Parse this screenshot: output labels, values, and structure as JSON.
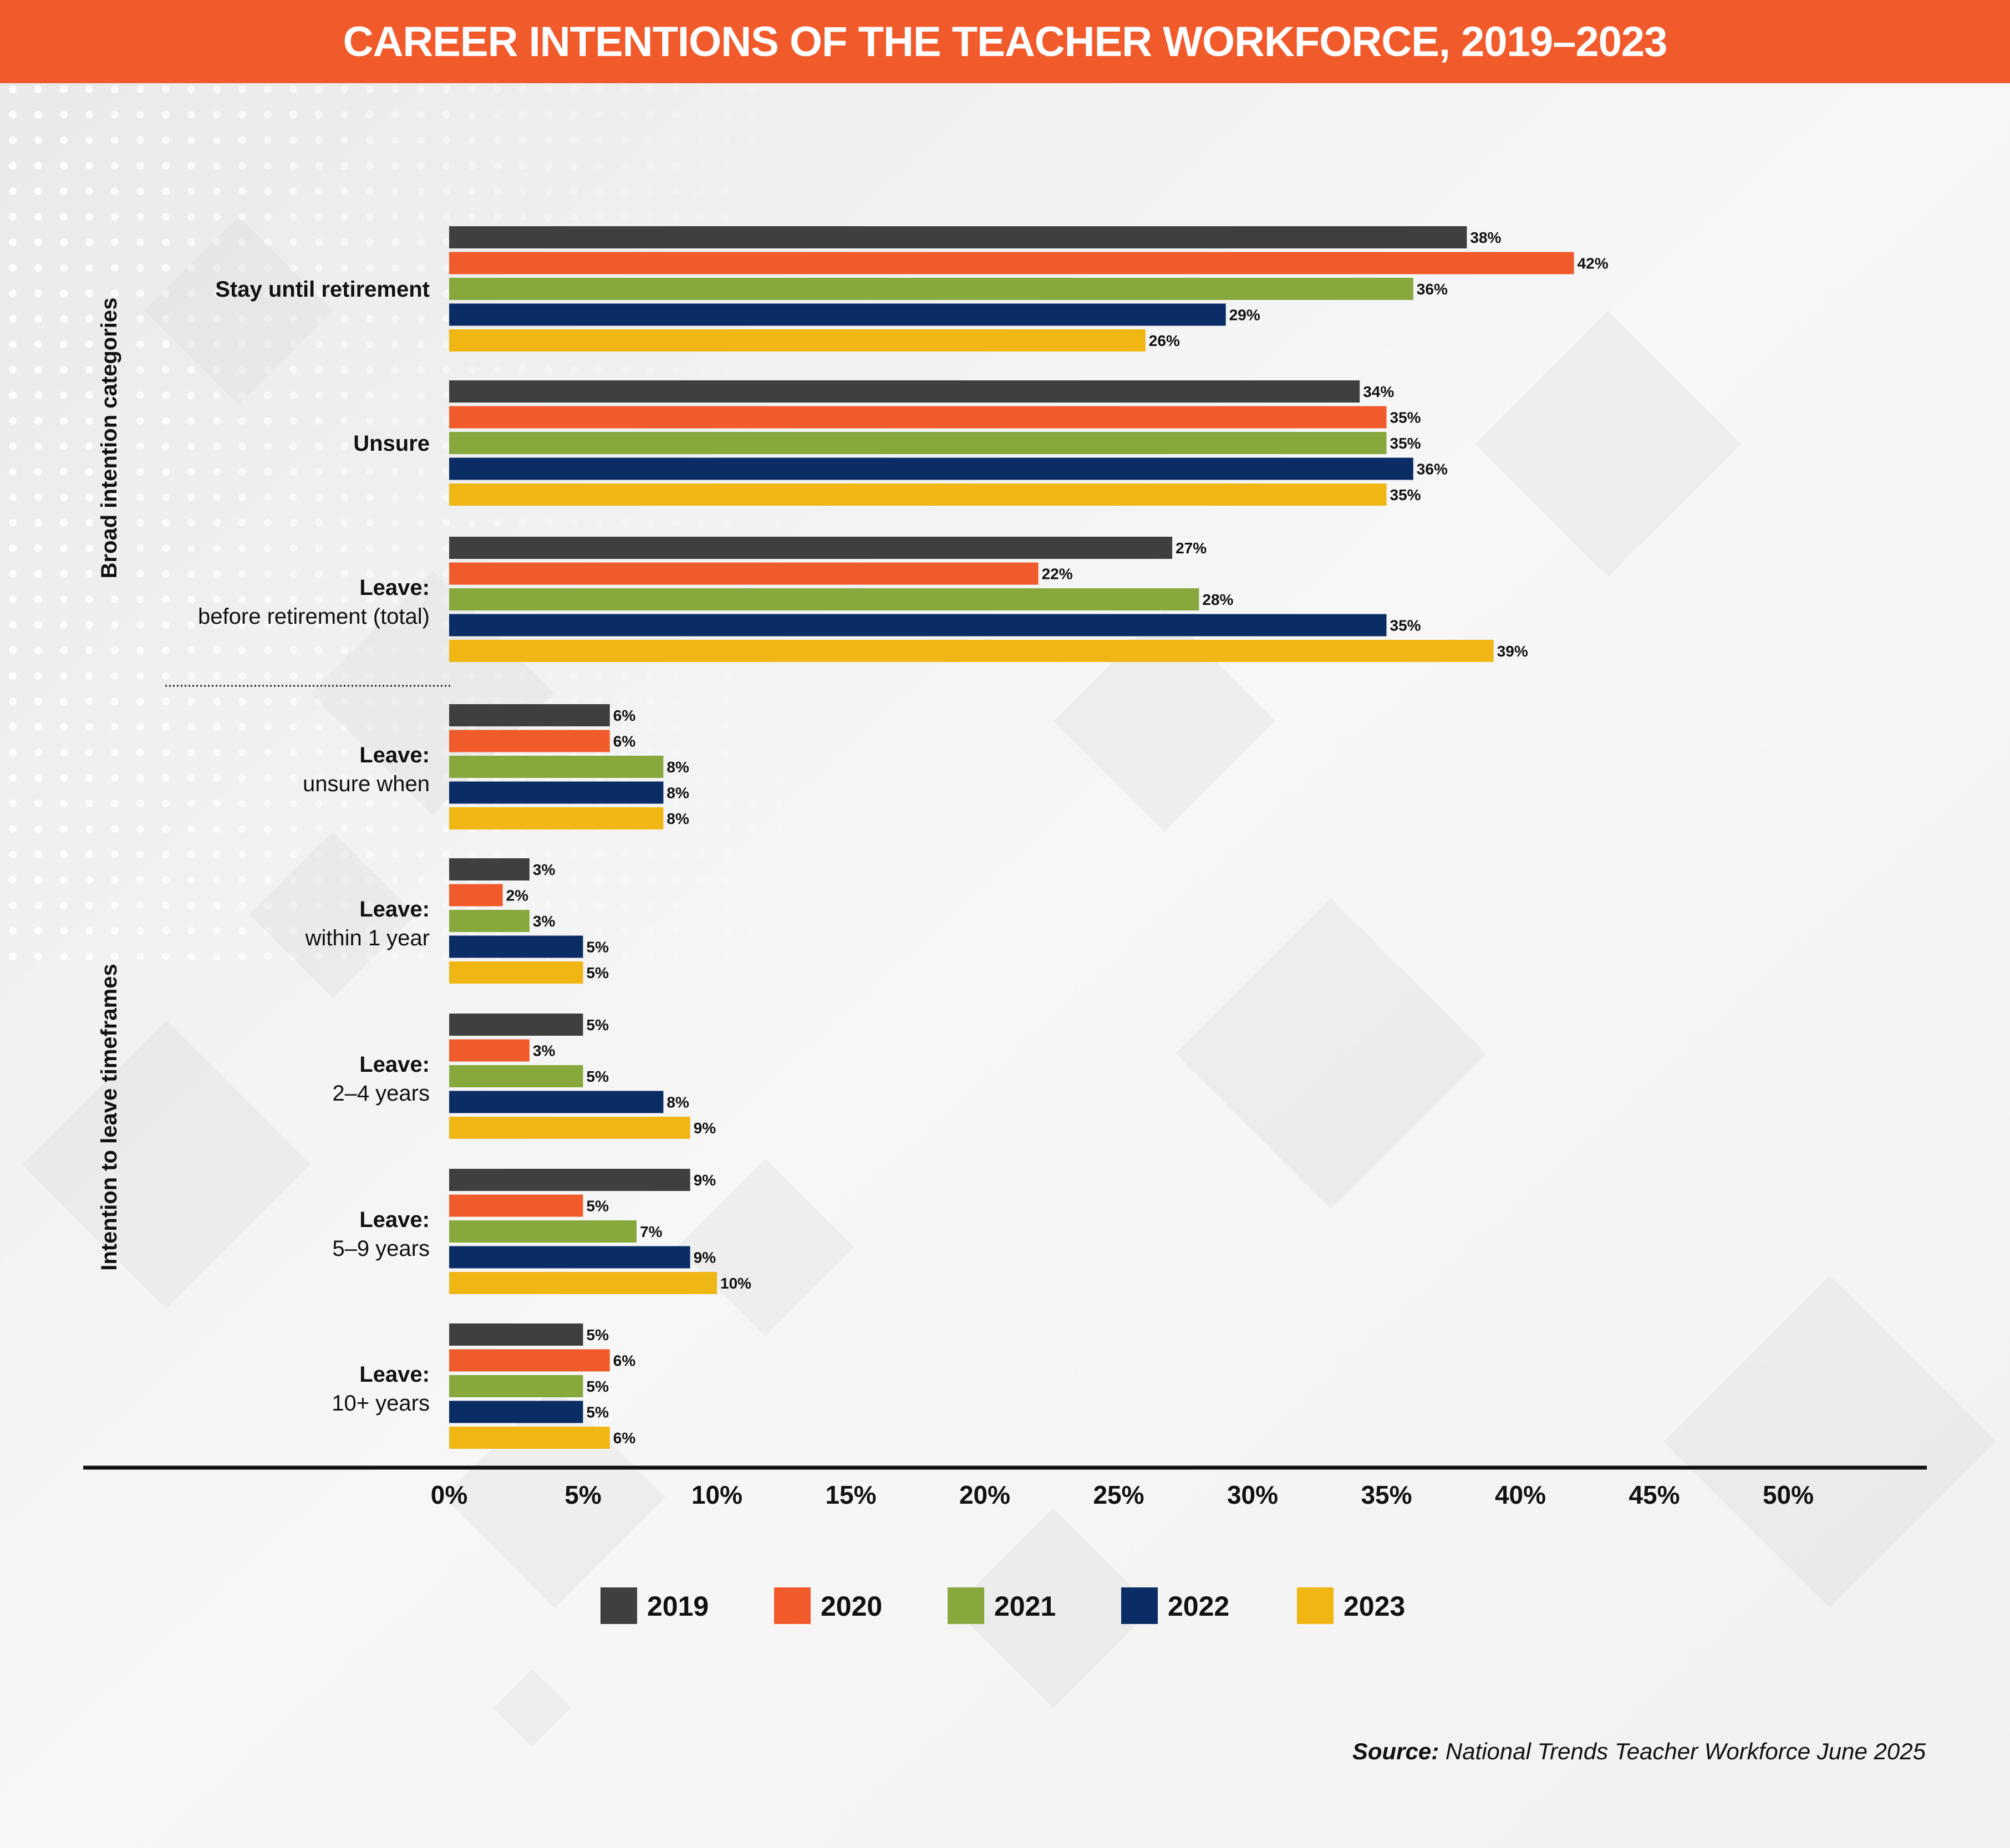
{
  "title": "CAREER INTENTIONS OF THE TEACHER WORKFORCE, 2019–2023",
  "colors": {
    "title_bar": "#F15A2B",
    "2019": "#3F3F3F",
    "2020": "#F15A2B",
    "2021": "#86A83C",
    "2022": "#0B2D66",
    "2023": "#F0B613"
  },
  "source": {
    "label": "Source:",
    "text": "National Trends Teacher Workforce June 2025"
  },
  "chart_data": {
    "type": "bar",
    "orientation": "horizontal",
    "value_suffix": "%",
    "xlim": [
      0,
      50
    ],
    "xticks": [
      "0%",
      "5%",
      "10%",
      "15%",
      "20%",
      "25%",
      "30%",
      "35%",
      "40%",
      "45%",
      "50%"
    ],
    "groups": [
      {
        "label": "Broad intention categories",
        "categories": [
          {
            "line1": "Stay until retirement",
            "line2": ""
          },
          {
            "line1": "Unsure",
            "line2": ""
          },
          {
            "line1": "Leave:",
            "line2": "before retirement (total)"
          }
        ]
      },
      {
        "label": "Intention to leave timeframes",
        "categories": [
          {
            "line1": "Leave:",
            "line2": "unsure when"
          },
          {
            "line1": "Leave:",
            "line2": "within 1 year"
          },
          {
            "line1": "Leave:",
            "line2": "2–4 years"
          },
          {
            "line1": "Leave:",
            "line2": "5–9 years"
          },
          {
            "line1": "Leave:",
            "line2": "10+ years"
          }
        ]
      }
    ],
    "series": [
      {
        "name": "2019",
        "values": [
          38,
          34,
          27,
          6,
          3,
          5,
          9,
          5
        ]
      },
      {
        "name": "2020",
        "values": [
          42,
          35,
          22,
          6,
          2,
          3,
          5,
          6
        ]
      },
      {
        "name": "2021",
        "values": [
          36,
          35,
          28,
          8,
          3,
          5,
          7,
          5
        ]
      },
      {
        "name": "2022",
        "values": [
          29,
          36,
          35,
          8,
          5,
          8,
          9,
          5
        ]
      },
      {
        "name": "2023",
        "values": [
          26,
          35,
          39,
          8,
          5,
          9,
          10,
          6
        ]
      }
    ],
    "legend_position": "bottom",
    "grid": false
  }
}
